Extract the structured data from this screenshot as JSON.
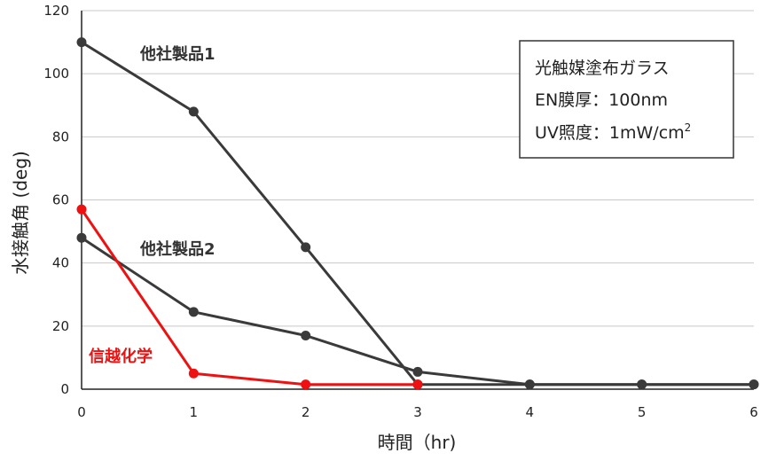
{
  "chart_data": {
    "type": "line",
    "xlabel": "時間（hr)",
    "ylabel": "水接触角 (deg)",
    "xlim": [
      0,
      6
    ],
    "ylim": [
      0,
      120
    ],
    "x_ticks": [
      "0",
      "1",
      "2",
      "3",
      "4",
      "5",
      "6"
    ],
    "y_ticks": [
      "0",
      "20",
      "40",
      "60",
      "80",
      "100",
      "120"
    ],
    "grid": true,
    "series": [
      {
        "name": "他社製品1",
        "color": "#3a3a3a",
        "x": [
          0,
          1,
          2,
          3,
          4,
          5,
          6
        ],
        "values": [
          110,
          88,
          45,
          1.5,
          1.5,
          1.5,
          1.5
        ]
      },
      {
        "name": "他社製品2",
        "color": "#3a3a3a",
        "x": [
          0,
          1,
          2,
          3,
          4,
          5,
          6
        ],
        "values": [
          48,
          24.5,
          17,
          5.5,
          1.5,
          1.5,
          1.5
        ]
      },
      {
        "name": "信越化学",
        "color": "#ee1111",
        "x": [
          0,
          1,
          2,
          3
        ],
        "values": [
          57,
          5,
          1.5,
          1.5
        ]
      }
    ],
    "info_box": {
      "line1": "光触媒塗布ガラス",
      "line2": "EN膜厚：100nm",
      "line3_prefix": "UV照度：1mW/cm",
      "line3_sup": "2"
    }
  }
}
